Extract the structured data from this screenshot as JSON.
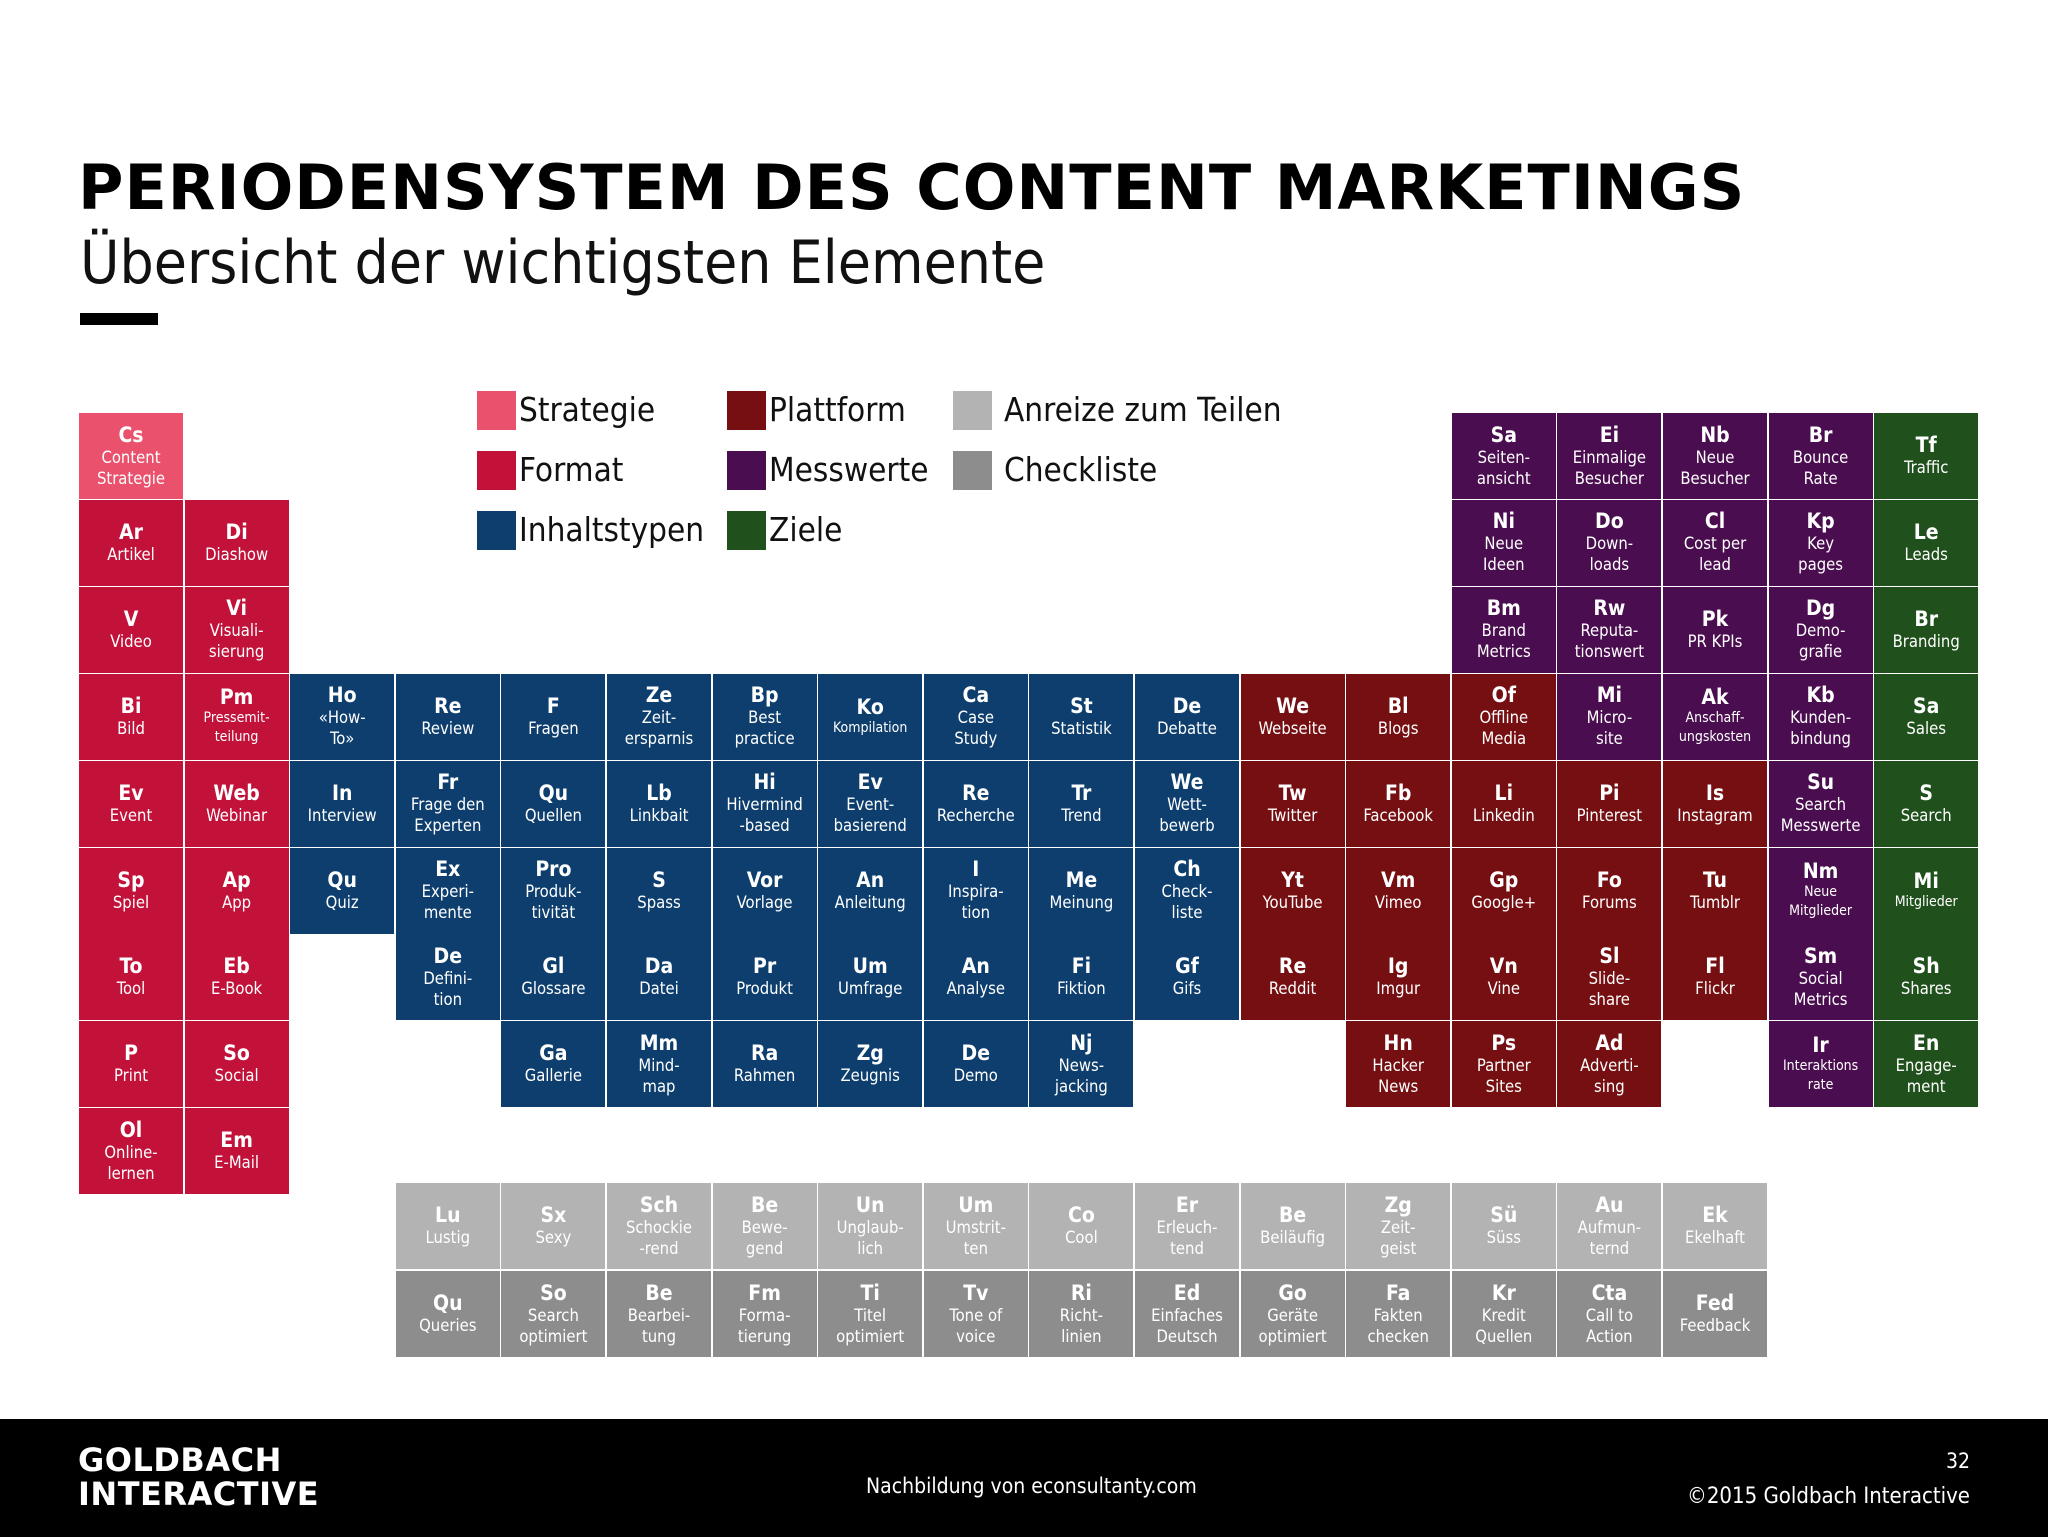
{
  "header": {
    "title": "PERIODENSYSTEM DES CONTENT MARKETINGS",
    "subtitle": "Übersicht der wichtigsten Elemente"
  },
  "legend": [
    {
      "label": "Strategie",
      "color": "#e9516c"
    },
    {
      "label": "Format",
      "color": "#c2123a"
    },
    {
      "label": "Inhaltstypen",
      "color": "#0d3e6d"
    },
    {
      "label": "Plattform",
      "color": "#750f12"
    },
    {
      "label": "Messwerte",
      "color": "#4a0d4f"
    },
    {
      "label": "Ziele",
      "color": "#20511c"
    },
    {
      "label": "Anreize zum Teilen",
      "color": "#b3b3b3"
    },
    {
      "label": "Checkliste",
      "color": "#8e8d8d"
    }
  ],
  "elements": [
    {
      "sym": "Cs",
      "name": "Content\nStrategie",
      "cat": "Strategie"
    },
    {
      "sym": "Ar",
      "name": "Artikel",
      "cat": "Format"
    },
    {
      "sym": "Di",
      "name": "Diashow",
      "cat": "Format"
    },
    {
      "sym": "V",
      "name": "Video",
      "cat": "Format"
    },
    {
      "sym": "Vi",
      "name": "Visuali-\nsierung",
      "cat": "Format"
    },
    {
      "sym": "Bi",
      "name": "Bild",
      "cat": "Format"
    },
    {
      "sym": "Pm",
      "name": "Pressemit-\nteilung",
      "cat": "Format"
    },
    {
      "sym": "Ev",
      "name": "Event",
      "cat": "Format"
    },
    {
      "sym": "Web",
      "name": "Webinar",
      "cat": "Format"
    },
    {
      "sym": "Sp",
      "name": "Spiel",
      "cat": "Format"
    },
    {
      "sym": "Ap",
      "name": "App",
      "cat": "Format"
    },
    {
      "sym": "To",
      "name": "Tool",
      "cat": "Format"
    },
    {
      "sym": "Eb",
      "name": "E-Book",
      "cat": "Format"
    },
    {
      "sym": "P",
      "name": "Print",
      "cat": "Format"
    },
    {
      "sym": "So",
      "name": "Social",
      "cat": "Format"
    },
    {
      "sym": "Ol",
      "name": "Online-\nlernen",
      "cat": "Format"
    },
    {
      "sym": "Em",
      "name": "E-Mail",
      "cat": "Format"
    },
    {
      "sym": "Ho",
      "name": "«How-\nTo»",
      "cat": "Inhaltstypen"
    },
    {
      "sym": "Re",
      "name": "Review",
      "cat": "Inhaltstypen"
    },
    {
      "sym": "F",
      "name": "Fragen",
      "cat": "Inhaltstypen"
    },
    {
      "sym": "Ze",
      "name": "Zeit-\nersparnis",
      "cat": "Inhaltstypen"
    },
    {
      "sym": "Bp",
      "name": "Best\npractice",
      "cat": "Inhaltstypen"
    },
    {
      "sym": "Ko",
      "name": "Kompilation",
      "cat": "Inhaltstypen"
    },
    {
      "sym": "Ca",
      "name": "Case\nStudy",
      "cat": "Inhaltstypen"
    },
    {
      "sym": "St",
      "name": "Statistik",
      "cat": "Inhaltstypen"
    },
    {
      "sym": "De",
      "name": "Debatte",
      "cat": "Inhaltstypen"
    },
    {
      "sym": "In",
      "name": "Interview",
      "cat": "Inhaltstypen"
    },
    {
      "sym": "Fr",
      "name": "Frage den\nExperten",
      "cat": "Inhaltstypen"
    },
    {
      "sym": "Qu",
      "name": "Quellen",
      "cat": "Inhaltstypen"
    },
    {
      "sym": "Lb",
      "name": "Linkbait",
      "cat": "Inhaltstypen"
    },
    {
      "sym": "Hi",
      "name": "Hivermind\n-based",
      "cat": "Inhaltstypen"
    },
    {
      "sym": "Ev",
      "name": "Event-\nbasierend",
      "cat": "Inhaltstypen"
    },
    {
      "sym": "Re",
      "name": "Recherche",
      "cat": "Inhaltstypen"
    },
    {
      "sym": "Tr",
      "name": "Trend",
      "cat": "Inhaltstypen"
    },
    {
      "sym": "We",
      "name": "Wett-\nbewerb",
      "cat": "Inhaltstypen"
    },
    {
      "sym": "Qu",
      "name": "Quiz",
      "cat": "Inhaltstypen"
    },
    {
      "sym": "Ex",
      "name": "Experi-\nmente",
      "cat": "Inhaltstypen"
    },
    {
      "sym": "Pro",
      "name": "Produk-\ntivität",
      "cat": "Inhaltstypen"
    },
    {
      "sym": "S",
      "name": "Spass",
      "cat": "Inhaltstypen"
    },
    {
      "sym": "Vor",
      "name": "Vorlage",
      "cat": "Inhaltstypen"
    },
    {
      "sym": "An",
      "name": "Anleitung",
      "cat": "Inhaltstypen"
    },
    {
      "sym": "I",
      "name": "Inspira-\ntion",
      "cat": "Inhaltstypen"
    },
    {
      "sym": "Me",
      "name": "Meinung",
      "cat": "Inhaltstypen"
    },
    {
      "sym": "Ch",
      "name": "Check-\nliste",
      "cat": "Inhaltstypen"
    },
    {
      "sym": "De",
      "name": "Defini-\ntion",
      "cat": "Inhaltstypen"
    },
    {
      "sym": "Gl",
      "name": "Glossare",
      "cat": "Inhaltstypen"
    },
    {
      "sym": "Da",
      "name": "Datei",
      "cat": "Inhaltstypen"
    },
    {
      "sym": "Pr",
      "name": "Produkt",
      "cat": "Inhaltstypen"
    },
    {
      "sym": "Um",
      "name": "Umfrage",
      "cat": "Inhaltstypen"
    },
    {
      "sym": "An",
      "name": "Analyse",
      "cat": "Inhaltstypen"
    },
    {
      "sym": "Fi",
      "name": "Fiktion",
      "cat": "Inhaltstypen"
    },
    {
      "sym": "Gf",
      "name": "Gifs",
      "cat": "Inhaltstypen"
    },
    {
      "sym": "Ga",
      "name": "Gallerie",
      "cat": "Inhaltstypen"
    },
    {
      "sym": "Mm",
      "name": "Mind-\nmap",
      "cat": "Inhaltstypen"
    },
    {
      "sym": "Ra",
      "name": "Rahmen",
      "cat": "Inhaltstypen"
    },
    {
      "sym": "Zg",
      "name": "Zeugnis",
      "cat": "Inhaltstypen"
    },
    {
      "sym": "De",
      "name": "Demo",
      "cat": "Inhaltstypen"
    },
    {
      "sym": "Nj",
      "name": "News-\njacking",
      "cat": "Inhaltstypen"
    },
    {
      "sym": "We",
      "name": "Webseite",
      "cat": "Plattform"
    },
    {
      "sym": "Bl",
      "name": "Blogs",
      "cat": "Plattform"
    },
    {
      "sym": "Of",
      "name": "Offline\nMedia",
      "cat": "Plattform"
    },
    {
      "sym": "Tw",
      "name": "Twitter",
      "cat": "Plattform"
    },
    {
      "sym": "Fb",
      "name": "Facebook",
      "cat": "Plattform"
    },
    {
      "sym": "Li",
      "name": "Linkedin",
      "cat": "Plattform"
    },
    {
      "sym": "Pi",
      "name": "Pinterest",
      "cat": "Plattform"
    },
    {
      "sym": "Is",
      "name": "Instagram",
      "cat": "Plattform"
    },
    {
      "sym": "Yt",
      "name": "YouTube",
      "cat": "Plattform"
    },
    {
      "sym": "Vm",
      "name": "Vimeo",
      "cat": "Plattform"
    },
    {
      "sym": "Gp",
      "name": "Google+",
      "cat": "Plattform"
    },
    {
      "sym": "Fo",
      "name": "Forums",
      "cat": "Plattform"
    },
    {
      "sym": "Tu",
      "name": "Tumblr",
      "cat": "Plattform"
    },
    {
      "sym": "Re",
      "name": "Reddit",
      "cat": "Plattform"
    },
    {
      "sym": "Ig",
      "name": "Imgur",
      "cat": "Plattform"
    },
    {
      "sym": "Vn",
      "name": "Vine",
      "cat": "Plattform"
    },
    {
      "sym": "Sl",
      "name": "Slide-\nshare",
      "cat": "Plattform"
    },
    {
      "sym": "Fl",
      "name": "Flickr",
      "cat": "Plattform"
    },
    {
      "sym": "Hn",
      "name": "Hacker\nNews",
      "cat": "Plattform"
    },
    {
      "sym": "Ps",
      "name": "Partner\nSites",
      "cat": "Plattform"
    },
    {
      "sym": "Ad",
      "name": "Adverti-\nsing",
      "cat": "Plattform"
    },
    {
      "sym": "Sa",
      "name": "Seiten-\nansicht",
      "cat": "Messwerte"
    },
    {
      "sym": "Ei",
      "name": "Einmalige\nBesucher",
      "cat": "Messwerte"
    },
    {
      "sym": "Nb",
      "name": "Neue\nBesucher",
      "cat": "Messwerte"
    },
    {
      "sym": "Br",
      "name": "Bounce\nRate",
      "cat": "Messwerte"
    },
    {
      "sym": "Ni",
      "name": "Neue\nIdeen",
      "cat": "Messwerte"
    },
    {
      "sym": "Do",
      "name": "Down-\nloads",
      "cat": "Messwerte"
    },
    {
      "sym": "Cl",
      "name": "Cost per\nlead",
      "cat": "Messwerte"
    },
    {
      "sym": "Kp",
      "name": "Key\npages",
      "cat": "Messwerte"
    },
    {
      "sym": "Bm",
      "name": "Brand\nMetrics",
      "cat": "Messwerte"
    },
    {
      "sym": "Rw",
      "name": "Reputa-\ntionswert",
      "cat": "Messwerte"
    },
    {
      "sym": "Pk",
      "name": "PR KPIs",
      "cat": "Messwerte"
    },
    {
      "sym": "Dg",
      "name": "Demo-\ngrafie",
      "cat": "Messwerte"
    },
    {
      "sym": "Mi",
      "name": "Micro-\nsite",
      "cat": "Messwerte"
    },
    {
      "sym": "Ak",
      "name": "Anschaff-\nungskosten",
      "cat": "Messwerte"
    },
    {
      "sym": "Kb",
      "name": "Kunden-\nbindung",
      "cat": "Messwerte"
    },
    {
      "sym": "Su",
      "name": "Search\nMesswerte",
      "cat": "Messwerte"
    },
    {
      "sym": "Nm",
      "name": "Neue\nMitglieder",
      "cat": "Messwerte"
    },
    {
      "sym": "Sm",
      "name": "Social\nMetrics",
      "cat": "Messwerte"
    },
    {
      "sym": "Ir",
      "name": "Interaktions\nrate",
      "cat": "Messwerte"
    },
    {
      "sym": "Tf",
      "name": "Traffic",
      "cat": "Ziele"
    },
    {
      "sym": "Le",
      "name": "Leads",
      "cat": "Ziele"
    },
    {
      "sym": "Br",
      "name": "Branding",
      "cat": "Ziele"
    },
    {
      "sym": "Sa",
      "name": "Sales",
      "cat": "Ziele"
    },
    {
      "sym": "S",
      "name": "Search",
      "cat": "Ziele"
    },
    {
      "sym": "Mi",
      "name": "Mitglieder",
      "cat": "Ziele"
    },
    {
      "sym": "Sh",
      "name": "Shares",
      "cat": "Ziele"
    },
    {
      "sym": "En",
      "name": "Engage-\nment",
      "cat": "Ziele"
    },
    {
      "sym": "Lu",
      "name": "Lustig",
      "cat": "Anreize zum Teilen"
    },
    {
      "sym": "Sx",
      "name": "Sexy",
      "cat": "Anreize zum Teilen"
    },
    {
      "sym": "Sch",
      "name": "Schockie\n-rend",
      "cat": "Anreize zum Teilen"
    },
    {
      "sym": "Be",
      "name": "Bewe-\ngend",
      "cat": "Anreize zum Teilen"
    },
    {
      "sym": "Un",
      "name": "Unglaub-\nlich",
      "cat": "Anreize zum Teilen"
    },
    {
      "sym": "Um",
      "name": "Umstrit-\nten",
      "cat": "Anreize zum Teilen"
    },
    {
      "sym": "Co",
      "name": "Cool",
      "cat": "Anreize zum Teilen"
    },
    {
      "sym": "Er",
      "name": "Erleuch-\ntend",
      "cat": "Anreize zum Teilen"
    },
    {
      "sym": "Be",
      "name": "Beiläufig",
      "cat": "Anreize zum Teilen"
    },
    {
      "sym": "Zg",
      "name": "Zeit-\ngeist",
      "cat": "Anreize zum Teilen"
    },
    {
      "sym": "Sü",
      "name": "Süss",
      "cat": "Anreize zum Teilen"
    },
    {
      "sym": "Au",
      "name": "Aufmun-\nternd",
      "cat": "Anreize zum Teilen"
    },
    {
      "sym": "Ek",
      "name": "Ekelhaft",
      "cat": "Anreize zum Teilen"
    },
    {
      "sym": "Qu",
      "name": "Queries",
      "cat": "Checkliste"
    },
    {
      "sym": "So",
      "name": "Search\noptimiert",
      "cat": "Checkliste"
    },
    {
      "sym": "Be",
      "name": "Bearbei-\ntung",
      "cat": "Checkliste"
    },
    {
      "sym": "Fm",
      "name": "Forma-\ntierung",
      "cat": "Checkliste"
    },
    {
      "sym": "Ti",
      "name": "Titel\noptimiert",
      "cat": "Checkliste"
    },
    {
      "sym": "Tv",
      "name": "Tone of\nvoice",
      "cat": "Checkliste"
    },
    {
      "sym": "Ri",
      "name": "Richt-\nlinien",
      "cat": "Checkliste"
    },
    {
      "sym": "Ed",
      "name": "Einfaches\nDeutsch",
      "cat": "Checkliste"
    },
    {
      "sym": "Go",
      "name": "Geräte\noptimiert",
      "cat": "Checkliste"
    },
    {
      "sym": "Fa",
      "name": "Fakten\nchecken",
      "cat": "Checkliste"
    },
    {
      "sym": "Kr",
      "name": "Kredit\nQuellen",
      "cat": "Checkliste"
    },
    {
      "sym": "Cta",
      "name": "Call to\nAction",
      "cat": "Checkliste"
    },
    {
      "sym": "Fed",
      "name": "Feedback",
      "cat": "Checkliste"
    }
  ],
  "footer": {
    "logo_line1": "GOLDBACH",
    "logo_line2": "INTERACTIVE",
    "source": "Nachbildung von econsultanty.com",
    "page_number": "32",
    "copyright": "©2015 Goldbach Interactive"
  }
}
